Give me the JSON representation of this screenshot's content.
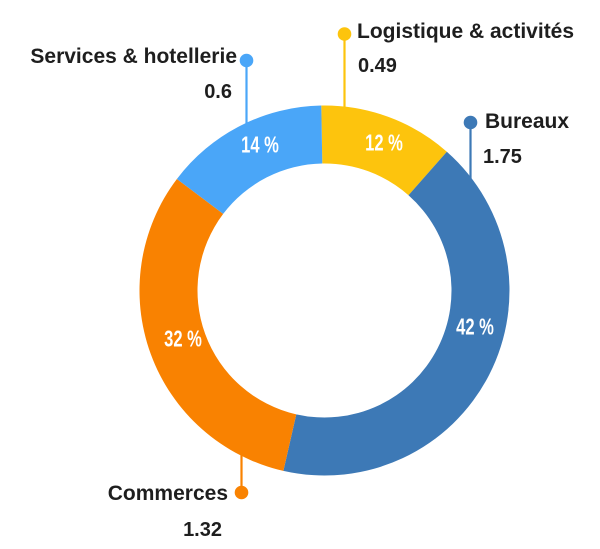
{
  "page": {
    "background_color": "#FFFFFF",
    "text_color": "#1E1E1E",
    "percent_text_color": "#FFFFFF"
  },
  "chart_data": {
    "type": "donut",
    "legend_position": "callouts",
    "segments": [
      {
        "id": "logistique",
        "label": "Logistique & activités",
        "value": 0.49,
        "value_label": "0.49",
        "percent_label": "12 %",
        "color": "#FDC40D"
      },
      {
        "id": "bureaux",
        "label": "Bureaux",
        "value": 1.75,
        "value_label": "1.75",
        "percent_label": "42 %",
        "color": "#3D79B6"
      },
      {
        "id": "commerces",
        "label": "Commerces",
        "value": 1.32,
        "value_label": "1.32",
        "percent_label": "32 %",
        "color": "#F98201"
      },
      {
        "id": "services",
        "label": "Services & hotellerie",
        "value": 0.6,
        "value_label": "0.6",
        "percent_label": "14 %",
        "color": "#4AA6F8"
      }
    ]
  }
}
